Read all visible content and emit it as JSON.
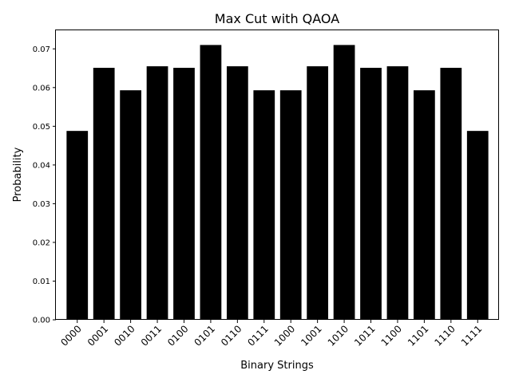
{
  "chart_data": {
    "type": "bar",
    "title": "Max Cut with QAOA",
    "xlabel": "Binary Strings",
    "ylabel": "Probability",
    "categories": [
      "0000",
      "0001",
      "0010",
      "0011",
      "0100",
      "0101",
      "0110",
      "0111",
      "1000",
      "1001",
      "1010",
      "1011",
      "1100",
      "1101",
      "1110",
      "1111"
    ],
    "values": [
      0.0488,
      0.0651,
      0.0593,
      0.0655,
      0.0651,
      0.071,
      0.0655,
      0.0593,
      0.0593,
      0.0655,
      0.071,
      0.0651,
      0.0655,
      0.0593,
      0.0651,
      0.0488
    ],
    "ylim": [
      0,
      0.075
    ],
    "yticks": [
      0.0,
      0.01,
      0.02,
      0.03,
      0.04,
      0.05,
      0.06,
      0.07
    ],
    "ytick_labels": [
      "0.00",
      "0.01",
      "0.02",
      "0.03",
      "0.04",
      "0.05",
      "0.06",
      "0.07"
    ],
    "bar_color": "#000000",
    "grid": false,
    "legend": "none"
  }
}
